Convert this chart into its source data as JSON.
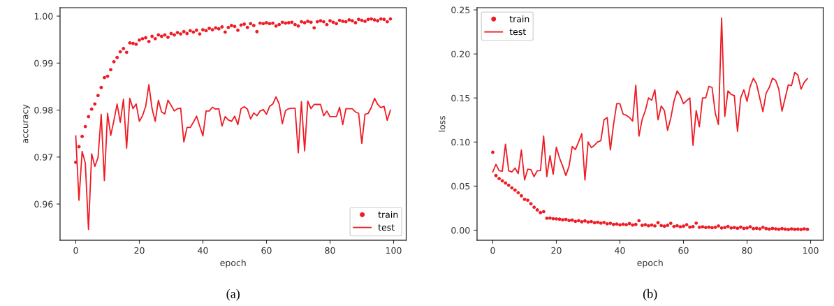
{
  "chart_data": [
    {
      "type": "line",
      "xlabel": "epoch",
      "ylabel": "accuracy",
      "annotations": [
        "(a)"
      ],
      "legend": "lower right",
      "x": [
        0,
        1,
        2,
        3,
        4,
        5,
        6,
        7,
        8,
        9,
        10,
        11,
        12,
        13,
        14,
        15,
        16,
        17,
        18,
        19,
        20,
        21,
        22,
        23,
        24,
        25,
        26,
        27,
        28,
        29,
        30,
        31,
        32,
        33,
        34,
        35,
        36,
        37,
        38,
        39,
        40,
        41,
        42,
        43,
        44,
        45,
        46,
        47,
        48,
        49,
        50,
        51,
        52,
        53,
        54,
        55,
        56,
        57,
        58,
        59,
        60,
        61,
        62,
        63,
        64,
        65,
        66,
        67,
        68,
        69,
        70,
        71,
        72,
        73,
        74,
        75,
        76,
        77,
        78,
        79,
        80,
        81,
        82,
        83,
        84,
        85,
        86,
        87,
        88,
        89,
        90,
        91,
        92,
        93,
        94,
        95,
        96,
        97,
        98,
        99
      ],
      "xlim": [
        -4.95,
        103.95
      ],
      "xticks": [
        0,
        20,
        40,
        60,
        80,
        100
      ],
      "ylim": [
        0.9523,
        1.0018
      ],
      "yticks": [
        0.96,
        0.97,
        0.98,
        0.99,
        {
          "value": 1.0,
          "label": "1.00"
        }
      ],
      "series": [
        {
          "name": "train",
          "type": "scatter",
          "marker": "circle",
          "color": "#ee1c25",
          "values": [
            0.9689,
            0.9722,
            0.9744,
            0.9765,
            0.9786,
            0.9802,
            0.9813,
            0.9831,
            0.9848,
            0.9869,
            0.9872,
            0.9886,
            0.9903,
            0.9912,
            0.9924,
            0.9931,
            0.9923,
            0.9943,
            0.9942,
            0.994,
            0.9949,
            0.9952,
            0.9954,
            0.9946,
            0.9957,
            0.9952,
            0.996,
            0.9957,
            0.996,
            0.9955,
            0.9963,
            0.996,
            0.9965,
            0.9962,
            0.9967,
            0.9963,
            0.9969,
            0.9966,
            0.997,
            0.9962,
            0.9971,
            0.9969,
            0.9974,
            0.9971,
            0.9975,
            0.9973,
            0.9977,
            0.9966,
            0.9976,
            0.998,
            0.9978,
            0.997,
            0.9981,
            0.9983,
            0.9976,
            0.9984,
            0.998,
            0.9967,
            0.9985,
            0.9984,
            0.9986,
            0.9984,
            0.9985,
            0.9979,
            0.9982,
            0.9987,
            0.9985,
            0.9986,
            0.9987,
            0.9982,
            0.9979,
            0.9988,
            0.9986,
            0.9989,
            0.9987,
            0.9975,
            0.9988,
            0.999,
            0.9988,
            0.9982,
            0.999,
            0.9987,
            0.9984,
            0.9991,
            0.9989,
            0.9988,
            0.9992,
            0.999,
            0.9986,
            0.9993,
            0.9991,
            0.9989,
            0.9993,
            0.9994,
            0.9992,
            0.999,
            0.9994,
            0.9993,
            0.9988,
            0.9994
          ]
        },
        {
          "name": "test",
          "marker": "none",
          "color": "#ee1c25",
          "values": [
            0.9745,
            0.9608,
            0.9712,
            0.9687,
            0.9546,
            0.9707,
            0.968,
            0.9699,
            0.9791,
            0.965,
            0.9793,
            0.9746,
            0.9778,
            0.9813,
            0.9774,
            0.9823,
            0.9719,
            0.9825,
            0.9803,
            0.9813,
            0.9776,
            0.9788,
            0.9808,
            0.9854,
            0.9803,
            0.9776,
            0.9821,
            0.9796,
            0.9792,
            0.9821,
            0.981,
            0.9798,
            0.9803,
            0.9804,
            0.9732,
            0.9763,
            0.9763,
            0.9774,
            0.9787,
            0.9766,
            0.9745,
            0.9798,
            0.9798,
            0.9806,
            0.9802,
            0.9803,
            0.9766,
            0.9786,
            0.9779,
            0.9776,
            0.9787,
            0.9769,
            0.9803,
            0.9807,
            0.9802,
            0.9781,
            0.9794,
            0.9788,
            0.9798,
            0.9801,
            0.9791,
            0.9808,
            0.9813,
            0.9828,
            0.9813,
            0.9771,
            0.9799,
            0.9803,
            0.9804,
            0.9804,
            0.9709,
            0.9818,
            0.9713,
            0.9819,
            0.9803,
            0.9812,
            0.9812,
            0.9812,
            0.9788,
            0.9798,
            0.9786,
            0.9786,
            0.9786,
            0.9806,
            0.9769,
            0.9803,
            0.9803,
            0.9803,
            0.9796,
            0.9793,
            0.9729,
            0.9791,
            0.9793,
            0.9806,
            0.9825,
            0.9812,
            0.9805,
            0.9808,
            0.9778,
            0.98
          ]
        }
      ]
    },
    {
      "type": "line",
      "xlabel": "epoch",
      "ylabel": "loss",
      "annotations": [
        "(b)"
      ],
      "legend": "upper left",
      "x": [
        0,
        1,
        2,
        3,
        4,
        5,
        6,
        7,
        8,
        9,
        10,
        11,
        12,
        13,
        14,
        15,
        16,
        17,
        18,
        19,
        20,
        21,
        22,
        23,
        24,
        25,
        26,
        27,
        28,
        29,
        30,
        31,
        32,
        33,
        34,
        35,
        36,
        37,
        38,
        39,
        40,
        41,
        42,
        43,
        44,
        45,
        46,
        47,
        48,
        49,
        50,
        51,
        52,
        53,
        54,
        55,
        56,
        57,
        58,
        59,
        60,
        61,
        62,
        63,
        64,
        65,
        66,
        67,
        68,
        69,
        70,
        71,
        72,
        73,
        74,
        75,
        76,
        77,
        78,
        79,
        80,
        81,
        82,
        83,
        84,
        85,
        86,
        87,
        88,
        89,
        90,
        91,
        92,
        93,
        94,
        95,
        96,
        97,
        98,
        99
      ],
      "xlim": [
        -4.95,
        103.95
      ],
      "xticks": [
        0,
        20,
        40,
        60,
        80,
        100
      ],
      "ylim": [
        -0.0114,
        0.2525
      ],
      "yticks": [
        {
          "value": 0.0,
          "label": "0.00"
        },
        0.05,
        {
          "value": 0.1,
          "label": "0.10"
        },
        0.15,
        {
          "value": 0.2,
          "label": "0.20"
        },
        0.25
      ],
      "series": [
        {
          "name": "train",
          "type": "scatter",
          "marker": "circle",
          "color": "#ee1c25",
          "values": [
            0.0884,
            0.062,
            0.0585,
            0.056,
            0.0535,
            0.051,
            0.048,
            0.0455,
            0.0425,
            0.039,
            0.035,
            0.034,
            0.03,
            0.026,
            0.023,
            0.02,
            0.021,
            0.0135,
            0.0137,
            0.013,
            0.0128,
            0.0125,
            0.0118,
            0.0122,
            0.011,
            0.0115,
            0.01,
            0.0108,
            0.0095,
            0.0105,
            0.0092,
            0.0098,
            0.0085,
            0.009,
            0.008,
            0.0088,
            0.0072,
            0.0078,
            0.0065,
            0.007,
            0.006,
            0.0068,
            0.0062,
            0.0075,
            0.0058,
            0.0065,
            0.0108,
            0.0055,
            0.0062,
            0.005,
            0.0058,
            0.0048,
            0.0085,
            0.0052,
            0.0045,
            0.0055,
            0.0078,
            0.0042,
            0.005,
            0.0038,
            0.0045,
            0.0062,
            0.0035,
            0.004,
            0.008,
            0.0032,
            0.0038,
            0.003,
            0.0035,
            0.0028,
            0.0032,
            0.0048,
            0.0025,
            0.003,
            0.0042,
            0.0025,
            0.003,
            0.0022,
            0.0035,
            0.002,
            0.0025,
            0.0038,
            0.0018,
            0.0022,
            0.0015,
            0.0032,
            0.0018,
            0.0012,
            0.002,
            0.0015,
            0.001,
            0.0018,
            0.0012,
            0.0008,
            0.0015,
            0.001,
            0.0012,
            0.0008,
            0.0015,
            0.001
          ]
        },
        {
          "name": "test",
          "marker": "none",
          "color": "#ee1c25",
          "values": [
            0.0661,
            0.0747,
            0.0674,
            0.0669,
            0.0976,
            0.0674,
            0.0661,
            0.0705,
            0.0642,
            0.091,
            0.0569,
            0.0692,
            0.0687,
            0.0608,
            0.0674,
            0.0674,
            0.1068,
            0.0608,
            0.0845,
            0.0635,
            0.0942,
            0.0818,
            0.0726,
            0.0621,
            0.0726,
            0.095,
            0.0915,
            0.1002,
            0.1094,
            0.0569,
            0.1002,
            0.0936,
            0.0963,
            0.1002,
            0.1015,
            0.1252,
            0.1278,
            0.091,
            0.1199,
            0.1435,
            0.1435,
            0.1317,
            0.1304,
            0.1278,
            0.1238,
            0.1645,
            0.1068,
            0.1257,
            0.1357,
            0.1501,
            0.1475,
            0.1593,
            0.1252,
            0.1409,
            0.1357,
            0.1133,
            0.127,
            0.1462,
            0.158,
            0.1527,
            0.1435,
            0.147,
            0.1501,
            0.0963,
            0.1357,
            0.1173,
            0.1501,
            0.1501,
            0.1632,
            0.1619,
            0.133,
            0.1199,
            0.2407,
            0.1291,
            0.158,
            0.154,
            0.1527,
            0.112,
            0.1501,
            0.1593,
            0.1462,
            0.1632,
            0.1724,
            0.1659,
            0.15,
            0.1344,
            0.1554,
            0.1619,
            0.1724,
            0.17,
            0.16,
            0.135,
            0.15,
            0.165,
            0.164,
            0.179,
            0.176,
            0.16,
            0.168,
            0.172
          ]
        }
      ]
    }
  ]
}
